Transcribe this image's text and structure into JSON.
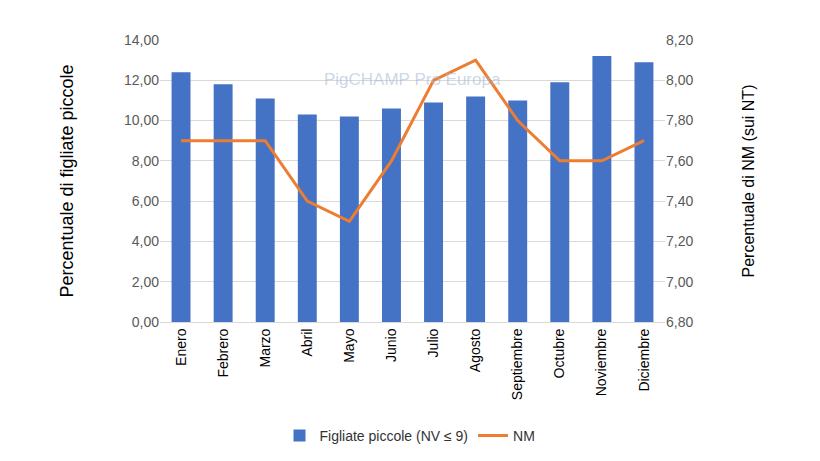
{
  "chart_data": {
    "type": "bar",
    "categories": [
      "Enero",
      "Febrero",
      "Marzo",
      "Abril",
      "Mayo",
      "Junio",
      "Julio",
      "Agosto",
      "Septiembre",
      "Octubre",
      "Noviembre",
      "Diciembre"
    ],
    "series": [
      {
        "name": "Figliate piccole (NV ≤ 9)",
        "type": "bar",
        "color": "#4472c4",
        "values": [
          12.4,
          11.8,
          11.1,
          10.3,
          10.2,
          10.6,
          10.9,
          11.2,
          11.0,
          11.9,
          13.2,
          12.9
        ]
      },
      {
        "name": "NM",
        "type": "line",
        "color": "#ed7d31",
        "axis": "y2",
        "values": [
          7.7,
          7.7,
          7.7,
          7.4,
          7.3,
          7.6,
          8.0,
          8.1,
          7.8,
          7.6,
          7.6,
          7.7
        ]
      }
    ],
    "y_label": "Percentuale di figliate piccole",
    "y2_label": "Percentuale di NM (sui NT)",
    "ylim": [
      0,
      14
    ],
    "yticks": [
      {
        "value": 0,
        "label": "0,00"
      },
      {
        "value": 2,
        "label": "2,00"
      },
      {
        "value": 4,
        "label": "4,00"
      },
      {
        "value": 6,
        "label": "6,00"
      },
      {
        "value": 8,
        "label": "8,00"
      },
      {
        "value": 10,
        "label": "10,00"
      },
      {
        "value": 12,
        "label": "12,00"
      },
      {
        "value": 14,
        "label": "14,00"
      }
    ],
    "y2lim": [
      6.8,
      8.2
    ],
    "y2ticks": [
      {
        "value": 6.8,
        "label": "6,80"
      },
      {
        "value": 7.0,
        "label": "7,00"
      },
      {
        "value": 7.2,
        "label": "7,20"
      },
      {
        "value": 7.4,
        "label": "7,40"
      },
      {
        "value": 7.6,
        "label": "7,60"
      },
      {
        "value": 7.8,
        "label": "7,80"
      },
      {
        "value": 8.0,
        "label": "8,00"
      },
      {
        "value": 8.2,
        "label": "8,20"
      }
    ],
    "grid": true,
    "legend": "bottom",
    "annotations": [
      {
        "text": "PigCHAMP Pro Europa"
      }
    ]
  }
}
